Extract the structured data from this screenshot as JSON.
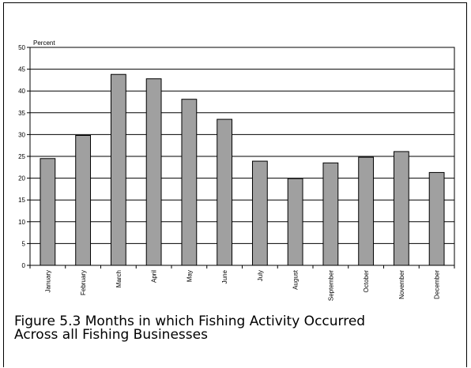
{
  "caption": {
    "line1": "Figure 5.3 Months in which Fishing Activity Occurred",
    "line2": "Across all Fishing Businesses"
  },
  "chart_data": {
    "type": "bar",
    "ylabel": "Percent",
    "ylim": [
      0,
      50
    ],
    "yticks": [
      0,
      5,
      10,
      15,
      20,
      25,
      30,
      35,
      40,
      45,
      50
    ],
    "grid": true,
    "bar_color": "#a0a0a0",
    "categories": [
      "January",
      "February",
      "March",
      "April",
      "May",
      "June",
      "July",
      "August",
      "September",
      "October",
      "November",
      "December"
    ],
    "values": [
      24.5,
      29.8,
      43.8,
      42.8,
      38.1,
      33.5,
      23.9,
      19.9,
      23.5,
      24.8,
      26.1,
      21.3
    ]
  }
}
